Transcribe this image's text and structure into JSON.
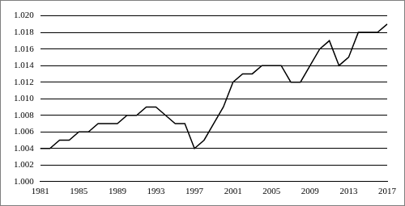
{
  "chart_data": {
    "type": "line",
    "categories": [
      "1981",
      null,
      null,
      null,
      "1985",
      null,
      null,
      null,
      "1989",
      null,
      null,
      null,
      "1993",
      null,
      null,
      null,
      "1997",
      null,
      null,
      null,
      "2001",
      null,
      null,
      null,
      "2005",
      null,
      null,
      null,
      "2009",
      null,
      null,
      null,
      "2013",
      null,
      null,
      null,
      "2017"
    ],
    "values": [
      1.004,
      1.004,
      1.005,
      1.005,
      1.006,
      1.006,
      1.007,
      1.007,
      1.007,
      1.008,
      1.008,
      1.009,
      1.009,
      1.008,
      1.007,
      1.007,
      1.004,
      1.005,
      1.007,
      1.009,
      1.012,
      1.013,
      1.013,
      1.014,
      1.014,
      1.014,
      1.012,
      1.012,
      1.014,
      1.016,
      1.017,
      1.014,
      1.015,
      1.018,
      1.018,
      1.018,
      1.019
    ],
    "color": "#000000",
    "ylim": [
      1,
      1.02
    ],
    "yticks": [
      {
        "value": 1,
        "label": "1.000"
      },
      1.002,
      1.004,
      1.006,
      1.008,
      {
        "value": 1.01,
        "label": "1.010"
      },
      1.012,
      1.014,
      1.016,
      1.018,
      {
        "value": 1.02,
        "label": "1.020"
      }
    ],
    "grid": true
  }
}
